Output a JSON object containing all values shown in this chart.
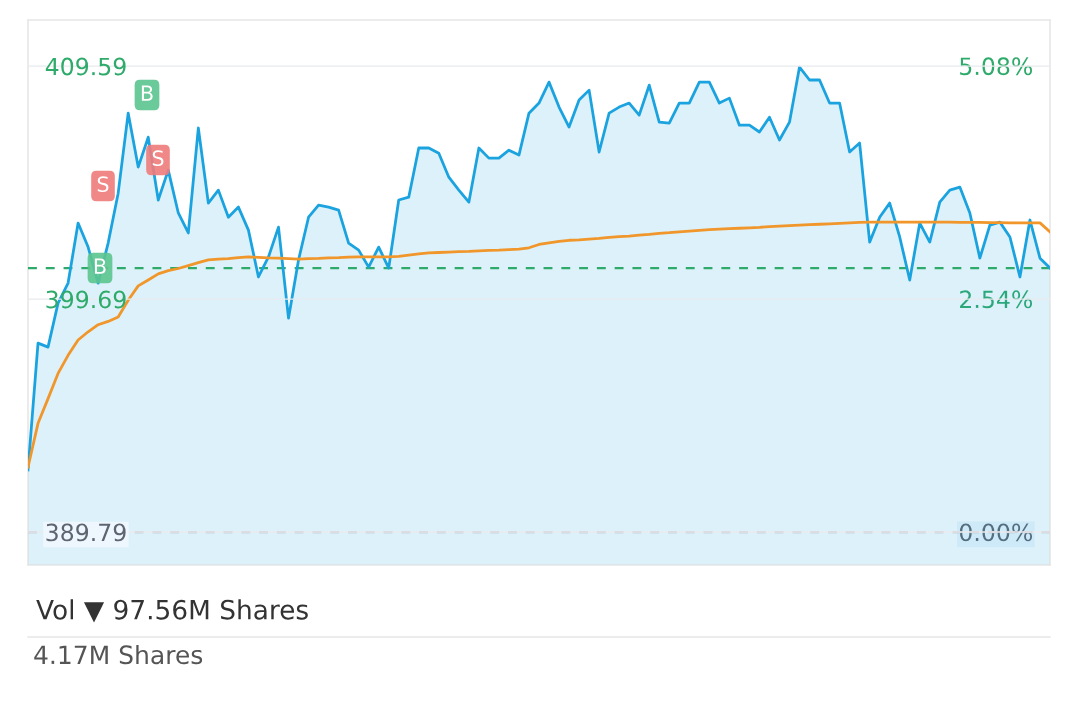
{
  "chart_data": {
    "type": "area",
    "categories": [
      null,
      null,
      null,
      null,
      null,
      null,
      null,
      null,
      null,
      null,
      null,
      null,
      null,
      null,
      null,
      null,
      null,
      null,
      null,
      null,
      null,
      null,
      null,
      null,
      null,
      null,
      null,
      null,
      null,
      null,
      null,
      null,
      null,
      null,
      null,
      null,
      null,
      null,
      null,
      null,
      null,
      null,
      null,
      null,
      null,
      null,
      null,
      null,
      null,
      null,
      null,
      null,
      null,
      null,
      null,
      null,
      null,
      null,
      null,
      null,
      null,
      null,
      null,
      null,
      null,
      null,
      null,
      null,
      null,
      null,
      null,
      null,
      null,
      null,
      null,
      null,
      null,
      null,
      null,
      null,
      null,
      null,
      null,
      null,
      null,
      null,
      null,
      null,
      null,
      null,
      null,
      null,
      null,
      null,
      null,
      null,
      null,
      null,
      null,
      null,
      null,
      null,
      null
    ],
    "series": [
      {
        "color": "#1ba3e0",
        "values": [
          392.43,
          397.82,
          397.65,
          399.52,
          400.37,
          402.92,
          401.9,
          400.37,
          402.07,
          404.19,
          407.59,
          405.3,
          406.57,
          403.9,
          405.17,
          403.35,
          402.5,
          406.96,
          403.77,
          404.32,
          403.17,
          403.6,
          402.62,
          400.63,
          401.48,
          402.75,
          398.88,
          401.35,
          403.17,
          403.68,
          403.6,
          403.47,
          402.07,
          401.77,
          401.05,
          401.9,
          401.01,
          403.9,
          404.02,
          406.11,
          406.11,
          405.89,
          404.87,
          404.32,
          403.81,
          406.11,
          405.68,
          405.68,
          406.02,
          405.81,
          407.59,
          408.02,
          408.91,
          407.85,
          407.0,
          408.15,
          408.57,
          405.94,
          407.59,
          407.85,
          408.02,
          407.51,
          408.78,
          407.21,
          407.17,
          408.02,
          408.02,
          408.91,
          408.91,
          408.02,
          408.23,
          407.08,
          407.08,
          406.79,
          407.42,
          406.45,
          407.21,
          409.55,
          409.0,
          409.0,
          408.02,
          408.02,
          405.94,
          406.32,
          402.11,
          403.17,
          403.77,
          402.33,
          400.5,
          402.92,
          402.11,
          403.81,
          404.32,
          404.45,
          403.35,
          401.43,
          402.83,
          402.96,
          402.33,
          400.63,
          403.05,
          401.43,
          401.01
        ]
      },
      {
        "color": "#f0962a",
        "type": "line",
        "values": [
          392.55,
          394.41,
          395.46,
          396.53,
          397.3,
          397.95,
          398.3,
          398.6,
          398.74,
          398.93,
          399.64,
          400.25,
          400.5,
          400.76,
          400.9,
          400.99,
          401.11,
          401.24,
          401.36,
          401.39,
          401.41,
          401.45,
          401.48,
          401.46,
          401.44,
          401.43,
          401.41,
          401.39,
          401.41,
          401.42,
          401.44,
          401.45,
          401.47,
          401.48,
          401.48,
          401.48,
          401.48,
          401.51,
          401.56,
          401.61,
          401.65,
          401.67,
          401.69,
          401.71,
          401.72,
          401.74,
          401.76,
          401.77,
          401.79,
          401.81,
          401.87,
          402.01,
          402.08,
          402.14,
          402.19,
          402.21,
          402.24,
          402.27,
          402.31,
          402.34,
          402.37,
          402.41,
          402.44,
          402.48,
          402.51,
          402.55,
          402.58,
          402.61,
          402.64,
          402.66,
          402.68,
          402.7,
          402.72,
          402.74,
          402.77,
          402.79,
          402.81,
          402.83,
          402.85,
          402.87,
          402.89,
          402.91,
          402.93,
          402.95,
          402.96,
          402.96,
          402.96,
          402.96,
          402.96,
          402.96,
          402.96,
          402.96,
          402.96,
          402.95,
          402.95,
          402.95,
          402.94,
          402.94,
          402.93,
          402.93,
          402.93,
          402.93,
          402.55
        ]
      }
    ],
    "ylim": [
      388.39,
      411.55
    ],
    "yticks": [
      409.59,
      399.69,
      389.79
    ],
    "y2lim": [
      -0.36,
      5.58
    ],
    "y2ticks": [
      {
        "value": 5.08,
        "label": "5.08%"
      },
      {
        "value": 2.54,
        "label": "2.54%"
      },
      {
        "value": 0.0,
        "label": "0.00%"
      }
    ],
    "tick_labels": "y",
    "grid": "y",
    "ref_lines": [
      {
        "axis": "y",
        "value": 401.01,
        "color": "#2eaa6a",
        "line_style": "dashed"
      },
      {
        "axis": "y",
        "value": 389.79,
        "color": "#b4b8c0",
        "line_style": "dashed"
      }
    ],
    "annotations": [
      "B",
      "S",
      "B",
      "S",
      "Vol ▼ 97.56M Shares",
      "4.17M Shares"
    ]
  }
}
